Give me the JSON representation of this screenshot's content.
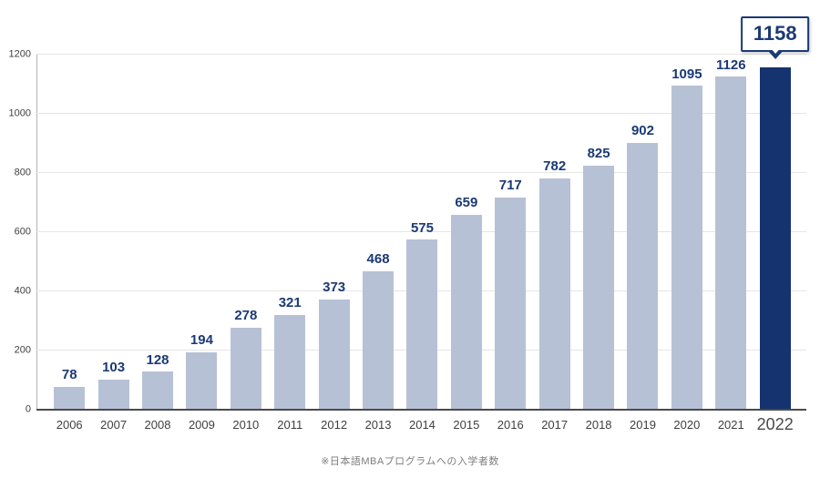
{
  "chart_data": {
    "type": "bar",
    "categories": [
      "2006",
      "2007",
      "2008",
      "2009",
      "2010",
      "2011",
      "2012",
      "2013",
      "2014",
      "2015",
      "2016",
      "2017",
      "2018",
      "2019",
      "2020",
      "2021",
      "2022"
    ],
    "values": [
      78,
      103,
      128,
      194,
      278,
      321,
      373,
      468,
      575,
      659,
      717,
      782,
      825,
      902,
      1095,
      1126,
      1158
    ],
    "title": "",
    "xlabel": "",
    "ylabel": "",
    "ylim": [
      0,
      1200
    ],
    "yticks": [
      0,
      200,
      400,
      600,
      800,
      1000,
      1200
    ],
    "grid": true,
    "legend": false,
    "highlight_category": "2022",
    "callout_label": "1158",
    "caption": "※日本語MBAプログラムへの入学者数",
    "colors": {
      "bar": "#b7c1d6",
      "highlight_bar": "#15336f",
      "value_label": "#1b3a74",
      "callout_border": "#1b3a74",
      "axis_label": "#3f3f3f",
      "gridline": "#e6e6e6",
      "baseline": "#4a4a4a",
      "caption": "#7d7d7d"
    }
  }
}
